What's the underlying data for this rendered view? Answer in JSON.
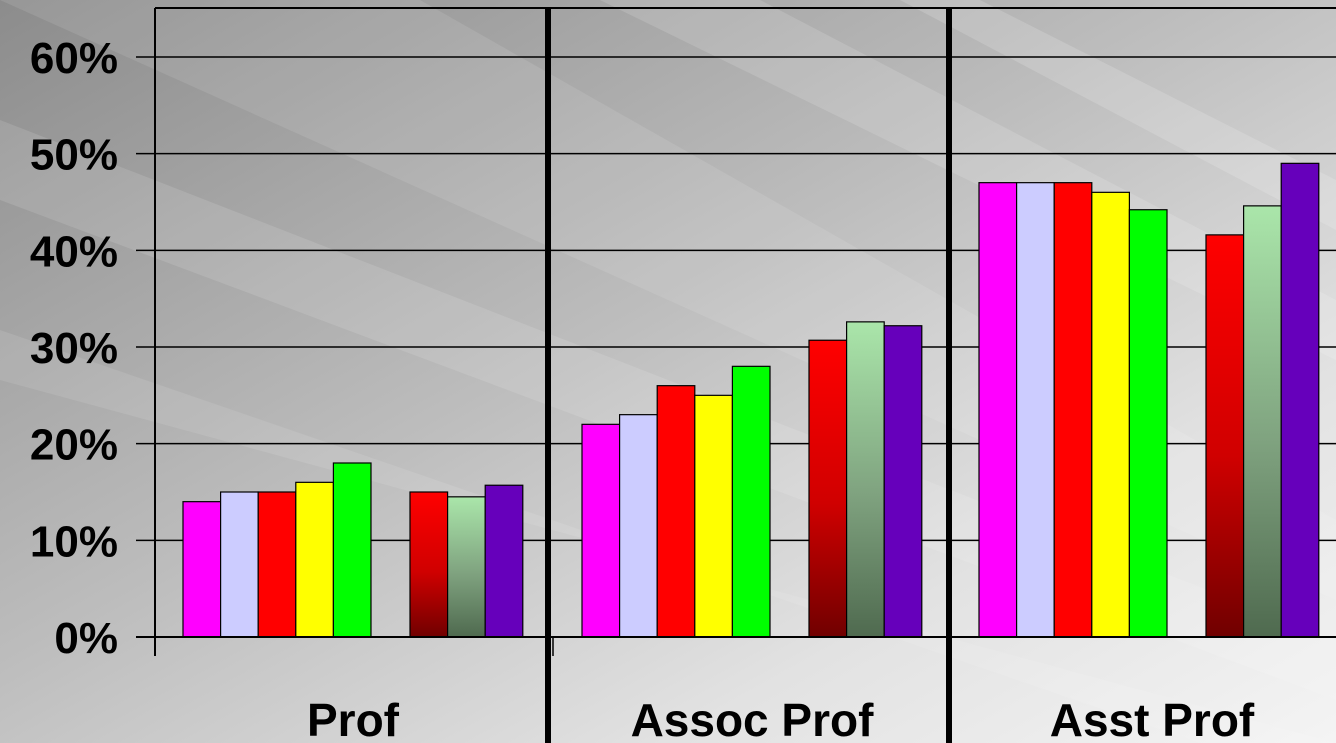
{
  "chart_data": {
    "type": "bar",
    "categories": [
      "Prof",
      "Assoc Prof",
      "Asst Prof"
    ],
    "ylim": [
      0,
      0.6
    ],
    "y_ticks": [
      "0%",
      "10%",
      "20%",
      "30%",
      "40%",
      "50%",
      "60%"
    ],
    "grid": true,
    "legend": "none",
    "groups": [
      {
        "category": "Prof",
        "first_cluster": [
          0.14,
          0.15,
          0.15,
          0.16,
          0.18
        ],
        "second_cluster": [
          0.15,
          0.145,
          0.157
        ]
      },
      {
        "category": "Assoc Prof",
        "first_cluster": [
          0.22,
          0.23,
          0.26,
          0.25,
          0.28
        ],
        "second_cluster": [
          0.307,
          0.326,
          0.322
        ]
      },
      {
        "category": "Asst Prof",
        "first_cluster": [
          0.47,
          0.47,
          0.47,
          0.46,
          0.442
        ],
        "second_cluster": [
          0.416,
          0.446,
          0.49
        ]
      }
    ],
    "first_cluster_colors": [
      "#FF00FF",
      "#CCCCFF",
      "#FF0000",
      "#FFFF00",
      "#00FF00"
    ],
    "second_cluster_colors": [
      "gradient-red",
      "gradient-green",
      "#6600BB"
    ]
  }
}
